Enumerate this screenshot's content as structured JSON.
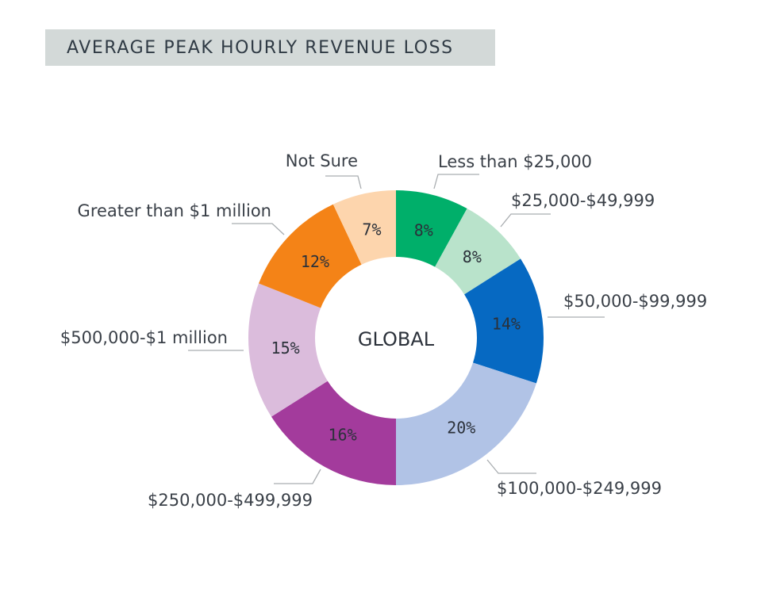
{
  "chart_data": {
    "type": "pie",
    "title": "AVERAGE PEAK HOURLY REVENUE LOSS",
    "center_label": "GLOBAL",
    "categories": [
      "Less than $25,000",
      "$25,000-$49,999",
      "$50,000-$99,999",
      "$100,000-$249,999",
      "$250,000-$499,999",
      "$500,000-$1 million",
      "Greater than $1 million",
      "Not Sure"
    ],
    "values": [
      8,
      8,
      14,
      20,
      16,
      15,
      12,
      7
    ],
    "value_labels": [
      "8%",
      "8%",
      "14%",
      "20%",
      "16%",
      "15%",
      "12%",
      "7%"
    ],
    "colors": [
      "#00af6a",
      "#b9e3cb",
      "#0669c2",
      "#b1c3e6",
      "#a33b9c",
      "#dbbcdc",
      "#f48317",
      "#fdd5ad"
    ],
    "legend": "none",
    "grid": false
  }
}
